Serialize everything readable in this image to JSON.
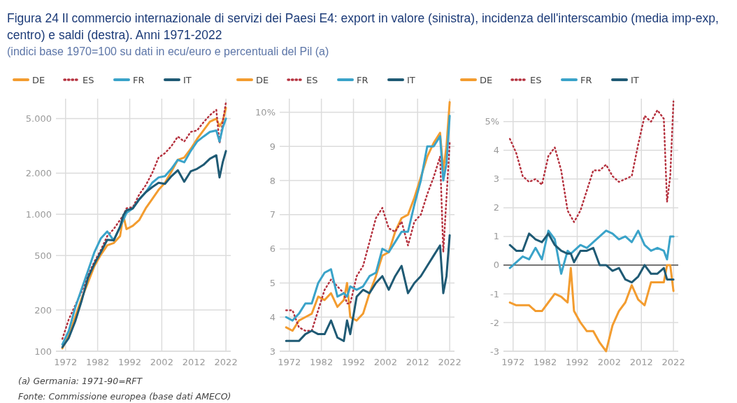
{
  "chart_data": [
    {
      "type": "line",
      "title": "Figura 24 Il commercio internazionale di servizi dei Paesi E4: export in valore (sinistra), incidenza dell'interscambio (media imp-exp, centro)  e saldi (destra). Anni 1971-2022",
      "subtitle": "(indici base 1970=100 su dati in ecu/euro e percentuali del Pil (a)",
      "annotations": [
        "(a) Germania: 1971-90=RFT",
        "Fonte: Commissione europea (base dati AMECO)"
      ],
      "log": true,
      "grid": true,
      "legend": "top left",
      "xlim": [
        1969,
        2023.5
      ],
      "xticks": [
        1972,
        1982,
        1992,
        2002,
        2012,
        2022
      ],
      "ylim": [
        100,
        7000
      ],
      "yticks": [
        100,
        200,
        500,
        {
          "value": 1000,
          "label": "1.000"
        },
        {
          "value": 2000,
          "label": "2.000"
        },
        {
          "value": 5000,
          "label": "5.000"
        }
      ],
      "x": [
        1971,
        1973,
        1975,
        1977,
        1979,
        1981,
        1983,
        1985,
        1987,
        1989,
        1990,
        1991,
        1993,
        1995,
        1997,
        1999,
        2001,
        2003,
        2005,
        2007,
        2009,
        2011,
        2013,
        2015,
        2017,
        2019,
        2020,
        2021,
        2022
      ],
      "series": [
        {
          "name": "DE",
          "color": "#f39c2f",
          "line_style": "solid",
          "values": [
            105,
            130,
            178,
            243,
            318,
            419,
            507,
            594,
            617,
            694,
            982,
            780,
            826,
            911,
            1107,
            1290,
            1510,
            1700,
            2050,
            2500,
            2600,
            3000,
            3550,
            4100,
            4750,
            5000,
            4400,
            4800,
            6000
          ]
        },
        {
          "name": "ES",
          "color": "#b5323f",
          "line_style": "dotted",
          "values": [
            123,
            171,
            216,
            272,
            358,
            452,
            548,
            694,
            780,
            911,
            982,
            1107,
            1130,
            1400,
            1630,
            2000,
            2600,
            2800,
            3150,
            3700,
            3400,
            4000,
            4100,
            4700,
            5300,
            5800,
            3300,
            4700,
            6600
          ]
        },
        {
          "name": "FR",
          "color": "#3aa3c9",
          "line_style": "solid",
          "values": [
            112,
            141,
            208,
            284,
            387,
            530,
            667,
            750,
            645,
            811,
            911,
            1024,
            1107,
            1290,
            1450,
            1700,
            1860,
            1900,
            2150,
            2500,
            2400,
            2900,
            3400,
            3700,
            4000,
            4100,
            3400,
            4300,
            5000
          ]
        },
        {
          "name": "IT",
          "color": "#1f5a74",
          "line_style": "solid",
          "values": [
            107,
            125,
            165,
            233,
            345,
            435,
            530,
            652,
            645,
            811,
            982,
            1070,
            1107,
            1290,
            1450,
            1580,
            1700,
            1670,
            1900,
            2100,
            1730,
            2060,
            2150,
            2300,
            2550,
            2700,
            1860,
            2400,
            2900
          ]
        }
      ]
    },
    {
      "type": "line",
      "grid": true,
      "legend": "top left",
      "xlim": [
        1969,
        2023.5
      ],
      "xticks": [
        1972,
        1982,
        1992,
        2002,
        2012,
        2022
      ],
      "ylim": [
        3,
        10.4
      ],
      "yticks": [
        3,
        4,
        5,
        6,
        7,
        8,
        9,
        {
          "value": 10,
          "label": "10%"
        }
      ],
      "x": [
        1971,
        1973,
        1975,
        1977,
        1979,
        1981,
        1983,
        1985,
        1987,
        1989,
        1990,
        1991,
        1993,
        1995,
        1997,
        1999,
        2001,
        2003,
        2005,
        2007,
        2009,
        2011,
        2013,
        2015,
        2017,
        2019,
        2020,
        2021,
        2022
      ],
      "series": [
        {
          "name": "DE",
          "color": "#f39c2f",
          "line_style": "solid",
          "values": [
            3.7,
            3.6,
            3.9,
            4.0,
            4.1,
            4.6,
            4.5,
            4.7,
            4.3,
            4.5,
            5.0,
            4.0,
            3.9,
            4.1,
            4.7,
            5.2,
            5.8,
            5.9,
            6.5,
            6.9,
            7.0,
            7.5,
            8.1,
            8.7,
            9.1,
            9.4,
            8.3,
            9.0,
            10.3
          ]
        },
        {
          "name": "ES",
          "color": "#b5323f",
          "line_style": "dotted",
          "values": [
            4.2,
            4.2,
            3.7,
            3.6,
            3.6,
            4.2,
            4.8,
            5.1,
            4.9,
            4.7,
            4.4,
            4.4,
            5.2,
            5.5,
            6.2,
            6.9,
            7.2,
            6.6,
            6.5,
            6.8,
            6.1,
            6.8,
            7.0,
            7.6,
            8.1,
            8.7,
            5.9,
            7.5,
            9.1
          ]
        },
        {
          "name": "FR",
          "color": "#3aa3c9",
          "line_style": "solid",
          "values": [
            4.0,
            3.9,
            4.1,
            4.4,
            4.4,
            5.0,
            5.3,
            5.4,
            4.6,
            4.7,
            4.6,
            4.9,
            4.8,
            4.9,
            5.2,
            5.3,
            6.0,
            5.9,
            6.2,
            6.5,
            6.5,
            7.3,
            8.0,
            9.0,
            9.0,
            9.3,
            8.0,
            8.5,
            9.9
          ]
        },
        {
          "name": "IT",
          "color": "#1f5a74",
          "line_style": "solid",
          "values": [
            3.3,
            3.3,
            3.3,
            3.5,
            3.6,
            3.5,
            3.5,
            3.9,
            3.4,
            3.3,
            3.9,
            3.5,
            4.6,
            4.8,
            4.7,
            5.0,
            5.2,
            4.8,
            5.2,
            5.5,
            4.7,
            5.0,
            5.2,
            5.5,
            5.8,
            6.1,
            4.7,
            5.2,
            6.4
          ]
        }
      ]
    },
    {
      "type": "line",
      "grid": true,
      "legend": "top left",
      "xlim": [
        1969,
        2023.5
      ],
      "xticks": [
        1972,
        1982,
        1992,
        2002,
        2012,
        2022
      ],
      "ylim": [
        -3,
        5.8
      ],
      "yticks": [
        -3,
        -2,
        -1,
        0,
        1,
        2,
        3,
        4,
        {
          "value": 5,
          "label": "5%"
        }
      ],
      "ref_lines": [
        {
          "axis": "y",
          "value": 0,
          "color": "#333333"
        }
      ],
      "x": [
        1971,
        1973,
        1975,
        1977,
        1979,
        1981,
        1983,
        1985,
        1987,
        1989,
        1990,
        1991,
        1993,
        1995,
        1997,
        1999,
        2001,
        2003,
        2005,
        2007,
        2009,
        2011,
        2013,
        2015,
        2017,
        2019,
        2020,
        2021,
        2022
      ],
      "series": [
        {
          "name": "DE",
          "color": "#f39c2f",
          "line_style": "solid",
          "values": [
            -1.3,
            -1.4,
            -1.4,
            -1.4,
            -1.6,
            -1.6,
            -1.3,
            -1.0,
            -1.1,
            -1.3,
            -0.1,
            -1.6,
            -2.0,
            -2.3,
            -2.3,
            -2.7,
            -3.0,
            -2.1,
            -1.6,
            -1.3,
            -0.7,
            -1.2,
            -1.4,
            -0.6,
            -0.6,
            -0.6,
            0.0,
            0.0,
            -0.9
          ]
        },
        {
          "name": "ES",
          "color": "#b5323f",
          "line_style": "dotted",
          "values": [
            4.4,
            3.9,
            3.1,
            2.9,
            3.0,
            2.8,
            3.8,
            4.1,
            3.3,
            1.9,
            1.7,
            1.5,
            1.9,
            2.6,
            3.3,
            3.3,
            3.5,
            3.1,
            2.9,
            3.0,
            3.1,
            4.2,
            5.2,
            5.0,
            5.4,
            5.1,
            2.2,
            3.1,
            5.7
          ]
        },
        {
          "name": "FR",
          "color": "#3aa3c9",
          "line_style": "solid",
          "values": [
            -0.1,
            0.1,
            0.3,
            0.2,
            0.6,
            0.2,
            1.2,
            0.9,
            -0.3,
            0.5,
            0.4,
            0.5,
            0.7,
            0.6,
            0.8,
            1.0,
            1.2,
            1.1,
            0.9,
            1.0,
            0.8,
            1.2,
            0.7,
            0.5,
            0.6,
            0.5,
            0.2,
            1.0,
            1.0
          ]
        },
        {
          "name": "IT",
          "color": "#1f5a74",
          "line_style": "solid",
          "values": [
            0.7,
            0.5,
            0.5,
            1.1,
            0.9,
            0.8,
            1.1,
            0.7,
            0.5,
            0.4,
            0.4,
            0.1,
            0.5,
            0.5,
            0.6,
            0.0,
            0.0,
            -0.2,
            -0.1,
            -0.5,
            -0.6,
            -0.4,
            0.0,
            -0.3,
            -0.3,
            -0.1,
            -0.5,
            -0.5,
            -0.5
          ]
        }
      ]
    }
  ]
}
